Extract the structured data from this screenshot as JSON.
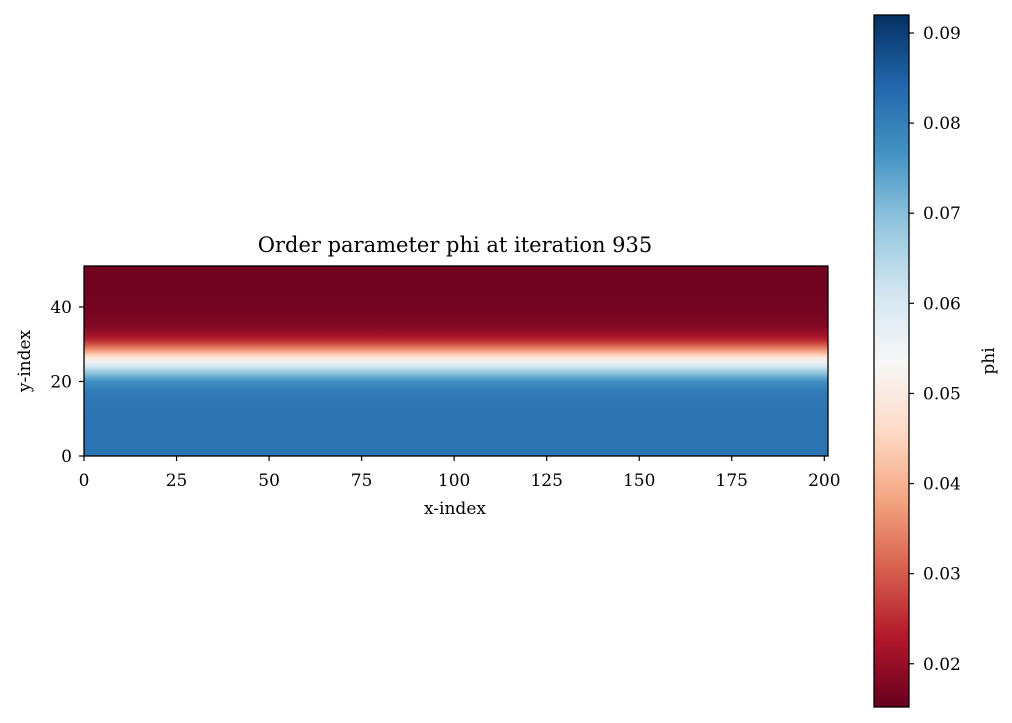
{
  "chart_data": {
    "type": "heatmap",
    "title": "Order parameter phi at iteration 935",
    "xlabel": "x-index",
    "ylabel": "y-index",
    "xlim": [
      0,
      201
    ],
    "ylim": [
      0,
      51
    ],
    "x_ticks": [
      0,
      25,
      50,
      75,
      100,
      125,
      150,
      175,
      200
    ],
    "y_ticks": [
      0,
      20,
      40
    ],
    "colormap": "RdBu",
    "colorbar": {
      "label": "phi",
      "vmin": 0.0152,
      "vmax": 0.092,
      "ticks": [
        "0.02",
        "0.03",
        "0.04",
        "0.05",
        "0.06",
        "0.07",
        "0.08",
        "0.09"
      ],
      "tick_values": [
        0.02,
        0.03,
        0.04,
        0.05,
        0.06,
        0.07,
        0.08,
        0.09
      ]
    },
    "profile_along_y": {
      "note_free": true,
      "y_index": [
        0,
        5,
        10,
        14,
        16,
        18,
        20,
        21,
        22,
        23,
        24,
        25,
        26,
        27,
        28,
        29,
        30,
        31,
        32,
        34,
        36,
        40,
        45,
        51
      ],
      "phi": [
        0.082,
        0.082,
        0.082,
        0.0815,
        0.081,
        0.08,
        0.077,
        0.074,
        0.07,
        0.066,
        0.061,
        0.056,
        0.051,
        0.045,
        0.039,
        0.034,
        0.029,
        0.025,
        0.022,
        0.019,
        0.0175,
        0.0165,
        0.016,
        0.016
      ]
    },
    "grid": false
  }
}
